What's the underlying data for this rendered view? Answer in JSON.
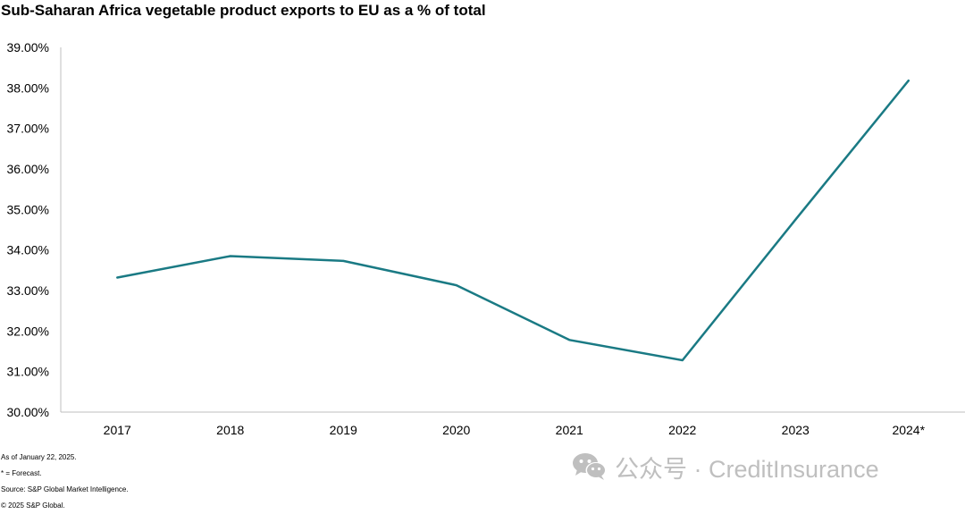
{
  "title": "Sub-Saharan Africa vegetable product exports to EU as a % of total",
  "chart_data": {
    "type": "line",
    "title": "Sub-Saharan Africa vegetable product exports to EU as a % of total",
    "categories": [
      "2017",
      "2018",
      "2019",
      "2020",
      "2021",
      "2022",
      "2023",
      "2024*"
    ],
    "series": [
      {
        "values": [
          33.32,
          33.85,
          33.73,
          33.13,
          31.78,
          31.28,
          34.75,
          38.18
        ],
        "color": "#1a7a84"
      }
    ],
    "ylim": [
      30,
      39
    ],
    "yticks": [
      30,
      31,
      32,
      33,
      34,
      35,
      36,
      37,
      38,
      39
    ],
    "ytick_labels": [
      "30.00%",
      "31.00%",
      "32.00%",
      "33.00%",
      "34.00%",
      "35.00%",
      "36.00%",
      "37.00%",
      "38.00%",
      "39.00%"
    ],
    "xlabel": "",
    "ylabel": "",
    "grid": false,
    "legend": "none"
  },
  "footnotes": {
    "as_of": "As of January 22, 2025.",
    "forecast": "* = Forecast.",
    "source": "Source: S&P Global Market Intelligence.",
    "copyright": "© 2025 S&P Global."
  },
  "watermark": {
    "text": "公众号 · CreditInsurance",
    "icon": "wechat-icon"
  }
}
